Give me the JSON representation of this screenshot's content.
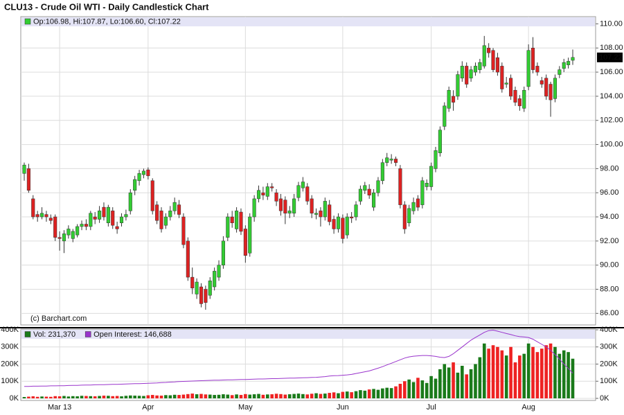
{
  "chart_data": [
    {
      "type": "candlestick",
      "title": "CLU13 - Crude Oil WTI - Daily Candlestick Chart",
      "legend_text": "Op:106.98, Hi:107.87, Lo:106.60, Cl:107.22",
      "watermark": "(c) Barchart.com",
      "up_color": "#33cc33",
      "down_color": "#dd2222",
      "open": [
        97.6,
        98.0,
        95.5,
        94.2,
        94.0,
        94.2,
        93.9,
        94.0,
        92.3,
        92.0,
        92.5,
        92.2,
        92.5,
        93.2,
        93.4,
        93.2,
        94.0,
        93.8,
        94.8,
        93.5,
        94.5,
        93.2,
        93.5,
        94.0,
        94.5,
        96.2,
        97.0,
        97.5,
        97.9,
        97.0,
        95.0,
        94.5,
        93.3,
        94.0,
        94.5,
        95.0,
        94.0,
        92.0,
        89.0,
        87.6,
        88.2,
        88.0,
        87.5,
        88.2,
        89.0,
        90.0,
        92.3,
        94.0,
        93.0,
        94.4,
        93.0,
        91.0,
        94.0,
        95.5,
        96.0,
        95.7,
        96.5,
        96.0,
        95.5,
        95.4,
        94.3,
        94.3,
        95.6,
        96.4,
        96.5,
        95.5,
        94.2,
        94.5,
        94.0,
        95.0,
        93.8,
        93.0,
        93.9,
        92.5,
        94.0,
        94.0,
        95.3,
        96.2,
        96.3,
        94.8,
        96.0,
        97.0,
        98.5,
        98.7,
        98.8,
        98.0,
        95.0,
        93.5,
        94.5,
        95.5,
        95.0,
        96.5,
        96.5,
        98.0,
        99.3,
        101.5,
        103.0,
        104.0,
        104.0,
        105.5,
        106.5,
        105.5,
        106.0,
        106.2,
        106.5,
        108.0,
        107.8,
        107.2,
        106.5,
        105.0,
        105.5,
        104.5,
        103.8,
        103.0,
        104.8,
        108.0,
        106.5,
        105.3,
        105.5,
        105.0,
        103.8,
        105.8,
        106.3,
        106.6,
        106.98
      ],
      "high": [
        98.5,
        98.4,
        95.8,
        94.5,
        94.8,
        94.5,
        94.2,
        94.2,
        92.8,
        92.9,
        93.3,
        93.0,
        93.4,
        93.7,
        93.8,
        94.5,
        94.4,
        94.9,
        95.2,
        95.0,
        94.8,
        93.6,
        94.3,
        94.6,
        96.3,
        97.4,
        97.9,
        98.0,
        98.1,
        97.2,
        95.3,
        94.8,
        94.3,
        94.9,
        95.6,
        95.4,
        94.3,
        92.3,
        89.8,
        88.9,
        88.5,
        88.3,
        89.0,
        89.8,
        90.4,
        92.4,
        94.3,
        94.5,
        94.8,
        94.7,
        93.3,
        94.3,
        95.8,
        96.6,
        96.5,
        96.8,
        96.8,
        96.3,
        95.9,
        95.7,
        94.9,
        95.9,
        96.9,
        97.3,
        96.8,
        95.8,
        94.7,
        94.8,
        95.6,
        95.4,
        94.1,
        94.3,
        94.2,
        94.3,
        94.4,
        95.3,
        96.6,
        96.9,
        96.7,
        96.3,
        97.3,
        98.8,
        99.3,
        99.2,
        99.0,
        98.3,
        95.3,
        95.0,
        95.6,
        95.8,
        97.3,
        97.1,
        98.5,
        99.8,
        101.5,
        103.5,
        104.8,
        104.5,
        106.1,
        106.9,
        106.8,
        106.5,
        106.8,
        107.1,
        109.0,
        108.4,
        108.0,
        107.6,
        106.8,
        105.6,
        105.8,
        104.8,
        104.1,
        104.8,
        108.3,
        108.9,
        106.8,
        105.6,
        105.8,
        105.2,
        105.8,
        106.5,
        107.1,
        107.2,
        107.87
      ],
      "low": [
        97.0,
        96.0,
        93.8,
        93.6,
        93.8,
        93.6,
        93.4,
        92.0,
        91.2,
        91.0,
        92.2,
        91.9,
        92.3,
        92.9,
        92.9,
        92.9,
        93.4,
        93.5,
        93.7,
        93.2,
        93.0,
        92.6,
        93.2,
        93.7,
        94.2,
        95.8,
        96.6,
        97.2,
        97.1,
        94.2,
        93.4,
        92.7,
        93.0,
        93.7,
        94.2,
        93.9,
        91.4,
        88.7,
        87.6,
        87.2,
        86.5,
        86.3,
        87.2,
        87.9,
        88.7,
        89.7,
        92.0,
        93.1,
        92.7,
        92.5,
        90.2,
        90.7,
        93.6,
        95.2,
        95.4,
        95.4,
        96.1,
        94.9,
        94.1,
        93.4,
        93.9,
        94.0,
        95.3,
        96.1,
        95.0,
        93.9,
        93.8,
        93.2,
        93.7,
        93.3,
        92.6,
        92.7,
        91.8,
        92.2,
        93.5,
        93.7,
        95.0,
        95.9,
        95.5,
        94.5,
        95.7,
        96.7,
        98.2,
        98.4,
        98.2,
        94.7,
        92.6,
        93.2,
        94.2,
        94.5,
        94.7,
        96.2,
        96.2,
        97.7,
        99.0,
        101.2,
        102.7,
        102.8,
        103.7,
        105.2,
        104.7,
        105.2,
        105.7,
        105.9,
        106.3,
        107.2,
        106.0,
        105.7,
        104.3,
        104.7,
        103.7,
        103.2,
        102.8,
        102.7,
        104.5,
        105.9,
        105.7,
        104.7,
        103.7,
        102.3,
        103.5,
        105.5,
        106.0,
        106.3,
        106.6
      ],
      "close": [
        98.3,
        96.2,
        94.0,
        94.0,
        94.3,
        94.0,
        93.7,
        92.3,
        92.2,
        92.6,
        93.0,
        92.8,
        93.2,
        93.4,
        93.2,
        94.3,
        93.8,
        94.5,
        94.0,
        94.8,
        93.3,
        93.0,
        94.0,
        94.2,
        96.0,
        97.1,
        97.6,
        97.8,
        97.4,
        94.5,
        93.7,
        93.0,
        94.0,
        94.5,
        95.2,
        94.2,
        91.7,
        89.0,
        88.1,
        88.6,
        86.8,
        86.9,
        88.7,
        89.5,
        90.0,
        92.0,
        94.0,
        93.5,
        94.5,
        92.8,
        90.8,
        94.0,
        95.5,
        96.2,
        95.8,
        96.5,
        96.4,
        95.3,
        94.5,
        94.3,
        94.5,
        95.5,
        96.6,
        96.9,
        95.3,
        94.3,
        94.3,
        94.0,
        95.3,
        93.6,
        93.0,
        94.0,
        92.2,
        94.0,
        93.9,
        95.0,
        96.3,
        96.6,
        95.8,
        96.0,
        97.0,
        98.5,
        98.9,
        98.8,
        98.5,
        95.0,
        93.0,
        94.7,
        95.2,
        94.8,
        97.0,
        96.8,
        98.2,
        99.5,
        101.2,
        103.2,
        104.5,
        103.5,
        105.8,
        106.5,
        105.0,
        106.2,
        106.5,
        106.8,
        108.2,
        107.6,
        106.2,
        106.0,
        104.6,
        105.1,
        104.0,
        103.5,
        103.2,
        104.5,
        107.8,
        106.2,
        106.0,
        105.0,
        104.0,
        103.7,
        105.5,
        106.2,
        106.8,
        106.9,
        107.22
      ],
      "ylim": [
        85.1,
        110.6
      ],
      "yticks": [
        {
          "value": 86,
          "label": "86.00"
        },
        {
          "value": 88,
          "label": "88.00"
        },
        {
          "value": 90,
          "label": "90.00"
        },
        {
          "value": 92,
          "label": "92.00"
        },
        {
          "value": 94,
          "label": "94.00"
        },
        {
          "value": 96,
          "label": "96.00"
        },
        {
          "value": 98,
          "label": "98.00"
        },
        {
          "value": 100,
          "label": "100.00"
        },
        {
          "value": 102,
          "label": "102.00"
        },
        {
          "value": 104,
          "label": "104.00"
        },
        {
          "value": 106,
          "label": "106.00"
        },
        {
          "value": 108,
          "label": "108.00"
        },
        {
          "value": 110,
          "label": "110.00"
        }
      ],
      "grid": true
    },
    {
      "type": "bar",
      "categories": [
        null,
        null,
        null,
        null,
        null,
        null,
        null,
        null,
        "Mar 13",
        null,
        null,
        null,
        null,
        null,
        null,
        null,
        null,
        null,
        null,
        null,
        null,
        null,
        null,
        null,
        null,
        null,
        null,
        null,
        "Apr",
        null,
        null,
        null,
        null,
        null,
        null,
        null,
        null,
        null,
        null,
        null,
        null,
        null,
        null,
        null,
        null,
        null,
        null,
        null,
        null,
        null,
        "May",
        null,
        null,
        null,
        null,
        null,
        null,
        null,
        null,
        null,
        null,
        null,
        null,
        null,
        null,
        null,
        null,
        null,
        null,
        null,
        null,
        null,
        "Jun",
        null,
        null,
        null,
        null,
        null,
        null,
        null,
        null,
        null,
        null,
        null,
        null,
        null,
        null,
        null,
        null,
        null,
        null,
        null,
        "Jul",
        null,
        null,
        null,
        null,
        null,
        null,
        null,
        null,
        null,
        null,
        null,
        null,
        null,
        null,
        null,
        null,
        null,
        null,
        null,
        null,
        null,
        "Aug",
        null,
        null,
        null,
        null,
        null,
        null,
        null,
        null,
        null,
        null
      ],
      "series": [
        {
          "name": "Vol: 231,370",
          "color": "#1a7a1a",
          "down_color": "#ee2222",
          "values": [
            8000,
            10000,
            12000,
            9000,
            11000,
            10000,
            9000,
            13000,
            12000,
            14000,
            11000,
            13000,
            12000,
            15000,
            14000,
            13000,
            12000,
            14000,
            16000,
            15000,
            13000,
            14000,
            12000,
            15000,
            17000,
            16000,
            15000,
            14000,
            18000,
            20000,
            17000,
            16000,
            19000,
            18000,
            21000,
            20000,
            22000,
            25000,
            28000,
            24000,
            26000,
            23000,
            22000,
            20000,
            21000,
            24000,
            22000,
            19000,
            23000,
            20000,
            25000,
            22000,
            24000,
            26000,
            21000,
            23000,
            24000,
            27000,
            25000,
            22000,
            24000,
            26000,
            28000,
            25000,
            23000,
            27000,
            30000,
            26000,
            28000,
            32000,
            35000,
            30000,
            38000,
            40000,
            36000,
            42000,
            48000,
            45000,
            52000,
            55000,
            50000,
            58000,
            62000,
            60000,
            70000,
            85000,
            100000,
            110000,
            95000,
            120000,
            105000,
            90000,
            130000,
            115000,
            170000,
            200000,
            180000,
            210000,
            150000,
            190000,
            140000,
            170000,
            200000,
            240000,
            320000,
            290000,
            310000,
            300000,
            280000,
            250000,
            300000,
            210000,
            250000,
            260000,
            320000,
            300000,
            270000,
            290000,
            310000,
            320000,
            300000,
            260000,
            280000,
            270000,
            231370
          ]
        },
        {
          "name": "Open Interest: 146,688",
          "color": "#9933cc",
          "values": [
            70000,
            70000,
            71000,
            71000,
            72000,
            72000,
            73000,
            73000,
            74000,
            74000,
            75000,
            76000,
            76000,
            77000,
            78000,
            78000,
            79000,
            80000,
            80000,
            81000,
            82000,
            82000,
            83000,
            84000,
            85000,
            86000,
            86000,
            87000,
            88000,
            89000,
            90000,
            92000,
            93000,
            95000,
            96000,
            98000,
            99000,
            100000,
            101000,
            102000,
            103000,
            104000,
            105000,
            106000,
            106000,
            107000,
            108000,
            108000,
            109000,
            110000,
            110000,
            111000,
            112000,
            113000,
            113000,
            114000,
            115000,
            115000,
            116000,
            117000,
            118000,
            118000,
            119000,
            120000,
            121000,
            122000,
            123000,
            125000,
            127000,
            130000,
            132000,
            133000,
            135000,
            137000,
            140000,
            145000,
            150000,
            155000,
            160000,
            168000,
            176000,
            185000,
            195000,
            205000,
            215000,
            225000,
            235000,
            242000,
            246000,
            248000,
            250000,
            250000,
            248000,
            245000,
            240000,
            238000,
            245000,
            260000,
            280000,
            300000,
            320000,
            340000,
            355000,
            370000,
            385000,
            395000,
            398000,
            392000,
            385000,
            378000,
            372000,
            365000,
            360000,
            358000,
            355000,
            345000,
            330000,
            315000,
            300000,
            280000,
            255000,
            230000,
            200000,
            175000,
            146688
          ]
        }
      ],
      "ylim": [
        0,
        400000
      ],
      "yticks": [
        {
          "value": 0,
          "label": "0K"
        },
        {
          "value": 100000,
          "label": "100K"
        },
        {
          "value": 200000,
          "label": "200K"
        },
        {
          "value": 300000,
          "label": "300K"
        },
        {
          "value": 400000,
          "label": "400K"
        }
      ],
      "grid": true
    }
  ]
}
